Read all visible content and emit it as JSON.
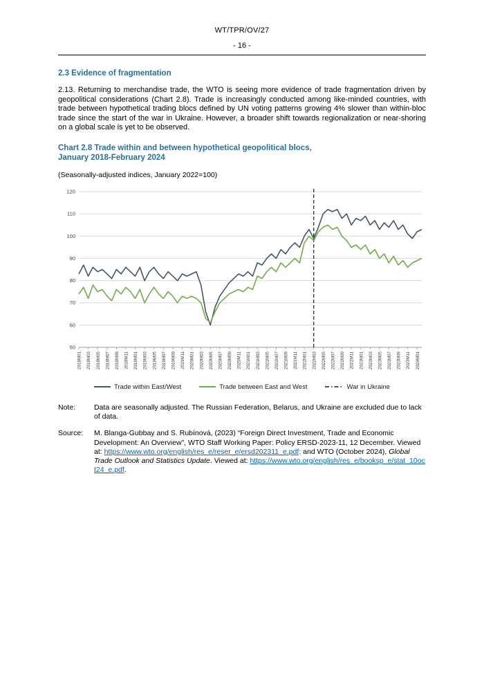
{
  "colors": {
    "heading_accent": "#26719F",
    "link": "#0563C1",
    "series_within": "#44546A",
    "series_between": "#70AD47"
  },
  "header": {
    "doc_ref": "WT/TPR/OV/27",
    "page_number": "- 16 -"
  },
  "section": {
    "heading": "2.3  Evidence of fragmentation",
    "paragraph": "2.13.  Returning to merchandise trade, the WTO is seeing more evidence of trade fragmentation driven by geopolitical considerations (Chart 2.8). Trade is increasingly conducted among like-minded countries, with trade between hypothetical trading blocs defined by UN voting patterns growing 4% slower than within-bloc trade since the start of the war in Ukraine. However, a broader shift towards regionalization or near-shoring on a global scale is yet to be observed."
  },
  "chart": {
    "title_line1": "Chart 2.8 Trade within and between hypothetical geopolitical blocs,",
    "title_line2": "January 2018-February 2024",
    "subtitle": "(Seasonally-adjusted indices, January 2022=100)"
  },
  "chart_data": {
    "type": "line",
    "title": "Chart 2.8 Trade within and between hypothetical geopolitical blocs, January 2018-February 2024",
    "subtitle": "(Seasonally-adjusted indices, January 2022=100)",
    "ylim": [
      50,
      120
    ],
    "ytick_interval": 10,
    "grid": true,
    "legend_position": "bottom",
    "x_tick_every": 2,
    "x": [
      "2018M01",
      "2018M02",
      "2018M03",
      "2018M04",
      "2018M05",
      "2018M06",
      "2018M07",
      "2018M08",
      "2018M09",
      "2018M10",
      "2018M11",
      "2018M12",
      "2019M01",
      "2019M02",
      "2019M03",
      "2019M04",
      "2019M05",
      "2019M06",
      "2019M07",
      "2019M08",
      "2019M09",
      "2019M10",
      "2019M11",
      "2019M12",
      "2020M01",
      "2020M02",
      "2020M03",
      "2020M04",
      "2020M05",
      "2020M06",
      "2020M07",
      "2020M08",
      "2020M09",
      "2020M10",
      "2020M11",
      "2020M12",
      "2021M01",
      "2021M02",
      "2021M03",
      "2021M04",
      "2021M05",
      "2021M06",
      "2021M07",
      "2021M08",
      "2021M09",
      "2021M10",
      "2021M11",
      "2021M12",
      "2022M01",
      "2022M02",
      "2022M03",
      "2022M04",
      "2022M05",
      "2022M06",
      "2022M07",
      "2022M08",
      "2022M09",
      "2022M10",
      "2022M11",
      "2022M12",
      "2023M01",
      "2023M02",
      "2023M03",
      "2023M04",
      "2023M05",
      "2023M06",
      "2023M07",
      "2023M08",
      "2023M09",
      "2023M10",
      "2023M11",
      "2023M12",
      "2024M01",
      "2024M02"
    ],
    "series": [
      {
        "name": "Trade within East/West",
        "color": "#44546A",
        "values": [
          83,
          87,
          82,
          86,
          84,
          85,
          83,
          81,
          85,
          83,
          86,
          84,
          82,
          86,
          80,
          84,
          86,
          83,
          81,
          84,
          82,
          80,
          83,
          82,
          83,
          84,
          78,
          66,
          60,
          68,
          73,
          76,
          79,
          81,
          83,
          82,
          84,
          82,
          88,
          87,
          90,
          92,
          90,
          94,
          92,
          95,
          97,
          95,
          100,
          103,
          99,
          104,
          110,
          112,
          111,
          112,
          108,
          110,
          105,
          108,
          107,
          109,
          105,
          107,
          103,
          106,
          104,
          107,
          103,
          105,
          101,
          99,
          102,
          103
        ]
      },
      {
        "name": "Trade between East and West",
        "color": "#70AD47",
        "values": [
          74,
          77,
          72,
          78,
          75,
          76,
          73,
          71,
          76,
          74,
          77,
          75,
          72,
          76,
          70,
          74,
          77,
          74,
          72,
          75,
          73,
          70,
          73,
          72,
          73,
          72,
          70,
          63,
          61,
          66,
          70,
          72,
          74,
          75,
          76,
          75,
          77,
          76,
          82,
          81,
          84,
          86,
          84,
          88,
          86,
          88,
          90,
          88,
          97,
          100,
          98,
          102,
          104,
          105,
          103,
          104,
          100,
          98,
          95,
          96,
          94,
          96,
          92,
          94,
          90,
          92,
          88,
          91,
          87,
          89,
          86,
          88,
          89,
          90
        ]
      }
    ],
    "annotation": {
      "label": "War in Ukraine",
      "x": "2022M03",
      "style": "vertical-dashed",
      "color": "#1a1a1a"
    }
  },
  "note": {
    "label": "Note:",
    "text": "Data are seasonally adjusted. The Russian Federation, Belarus, and Ukraine are excluded due to lack of data."
  },
  "source": {
    "label": "Source:",
    "text1": "M. Blanga-Gubbay and S. Rubínová, (2023) “Foreign Direct Investment, Trade and Economic Development: An Overview”, WTO Staff Working Paper: Policy ERSD-2023-11, 12 December. Viewed at: ",
    "link1": "https://www.wto.org/english/res_e/reser_e/ersd202311_e.pdf;",
    "text2": " and WTO (October 2024), ",
    "italic1": "Global Trade Outlook and Statistics Update",
    "text3": ". Viewed at: ",
    "link2": "https://www.wto.org/english/res_e/booksp_e/stat_10oct24_e.pdf",
    "text4": "."
  }
}
